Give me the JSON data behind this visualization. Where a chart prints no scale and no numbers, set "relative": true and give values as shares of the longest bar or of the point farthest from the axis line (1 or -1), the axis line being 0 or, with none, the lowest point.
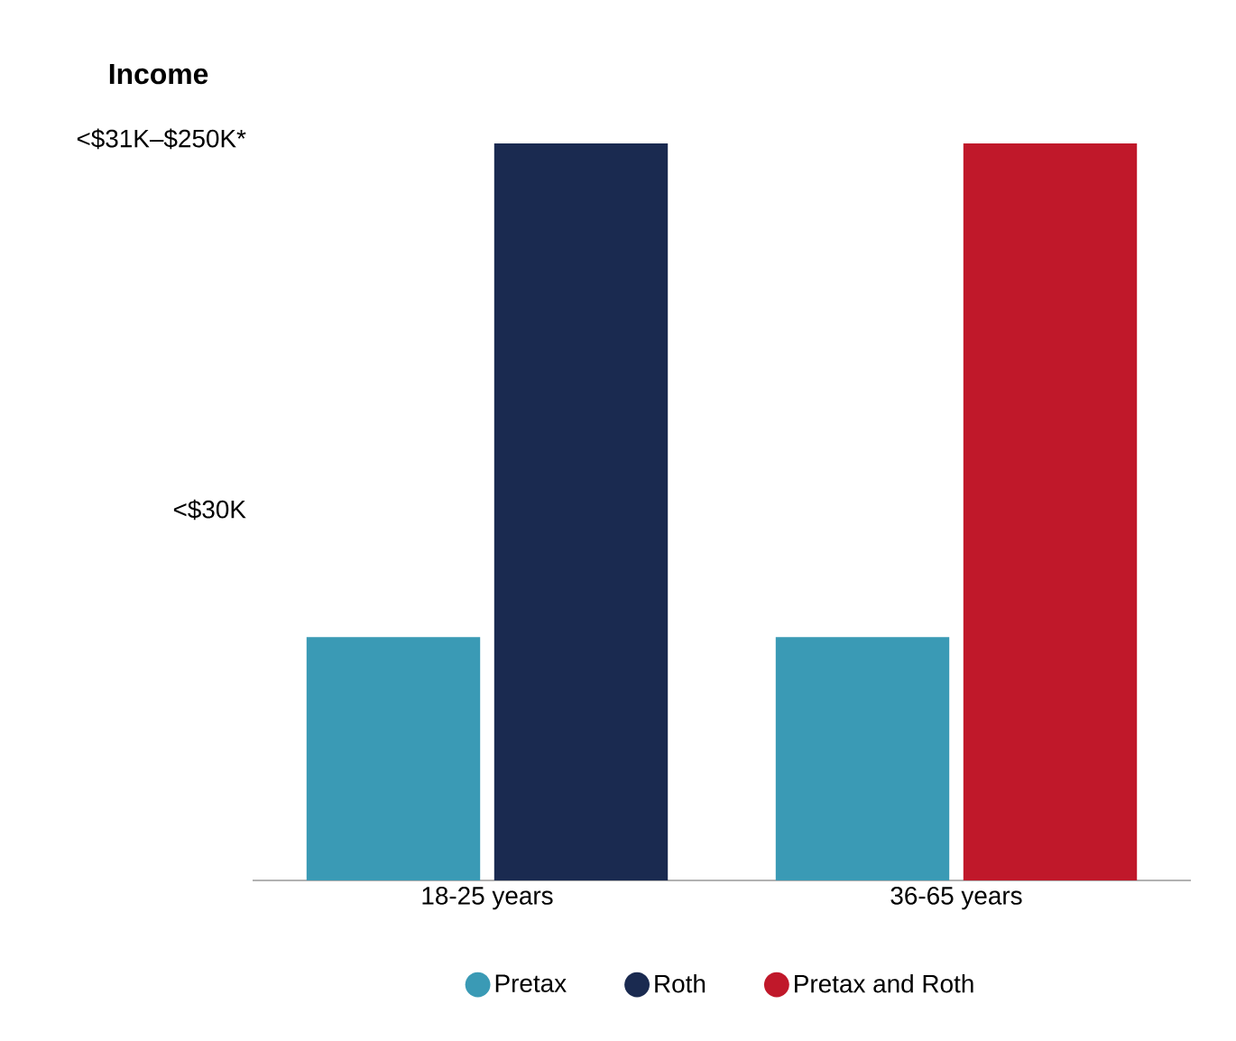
{
  "chart_data": {
    "type": "bar",
    "relative": true,
    "ylabel": "Income",
    "categories": [
      "18-25 years",
      "36-65 years"
    ],
    "series": [
      {
        "name": "Pretax",
        "color": "#3a9ab5",
        "values": [
          0.33,
          0.33
        ]
      },
      {
        "name": "Roth",
        "color": "#1a2a50",
        "values": [
          1,
          null
        ]
      },
      {
        "name": "Pretax and Roth",
        "color": "#c0182a",
        "values": [
          null,
          1
        ]
      }
    ],
    "annotations": [
      "<$30K",
      "<$31K–$250K*"
    ],
    "legend": "bottom"
  }
}
